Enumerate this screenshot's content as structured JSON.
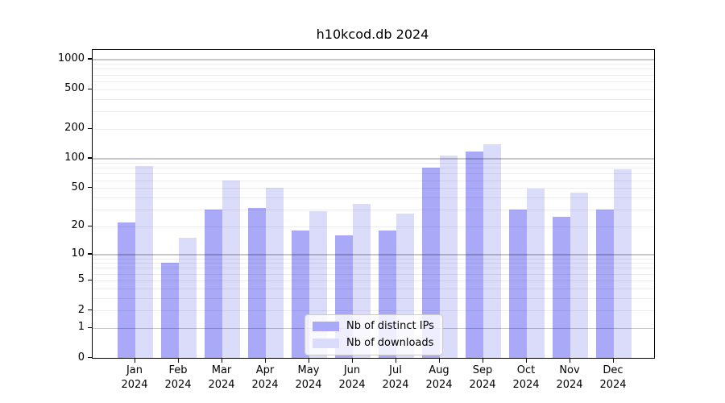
{
  "figure": {
    "background": "#ffffff",
    "axis_color": "#000000",
    "grid_major_color": "rgba(0,0,0,0.22)",
    "grid_minor_color": "rgba(0,0,0,0.07)"
  },
  "chart_data": {
    "type": "bar",
    "title": "h10kcod.db 2024",
    "categories": [
      "Jan",
      "Feb",
      "Mar",
      "Apr",
      "May",
      "Jun",
      "Jul",
      "Aug",
      "Sep",
      "Oct",
      "Nov",
      "Dec"
    ],
    "category_year": "2024",
    "series": [
      {
        "name": "Nb of distinct IPs",
        "color": "#a9a9f7",
        "values": [
          22,
          8,
          30,
          31,
          18,
          16,
          18,
          80,
          118,
          30,
          25,
          30
        ]
      },
      {
        "name": "Nb of downloads",
        "color": "#dbdbfa",
        "values": [
          83,
          15,
          59,
          50,
          29,
          34,
          27,
          107,
          140,
          49,
          45,
          77
        ]
      }
    ],
    "xlabel": "",
    "ylabel": "",
    "y_scale": "log1p",
    "ylim": [
      0,
      1240
    ],
    "y_ticks": [
      0,
      1,
      2,
      5,
      10,
      20,
      50,
      100,
      200,
      500,
      1000
    ],
    "y_grid_major": [
      1,
      10,
      100,
      1000
    ],
    "y_grid_minor": [
      2,
      3,
      4,
      5,
      6,
      7,
      8,
      9,
      20,
      30,
      40,
      50,
      60,
      70,
      80,
      90,
      200,
      300,
      400,
      500,
      600,
      700,
      800,
      900
    ],
    "grid": "on",
    "legend_position": "lower center"
  }
}
